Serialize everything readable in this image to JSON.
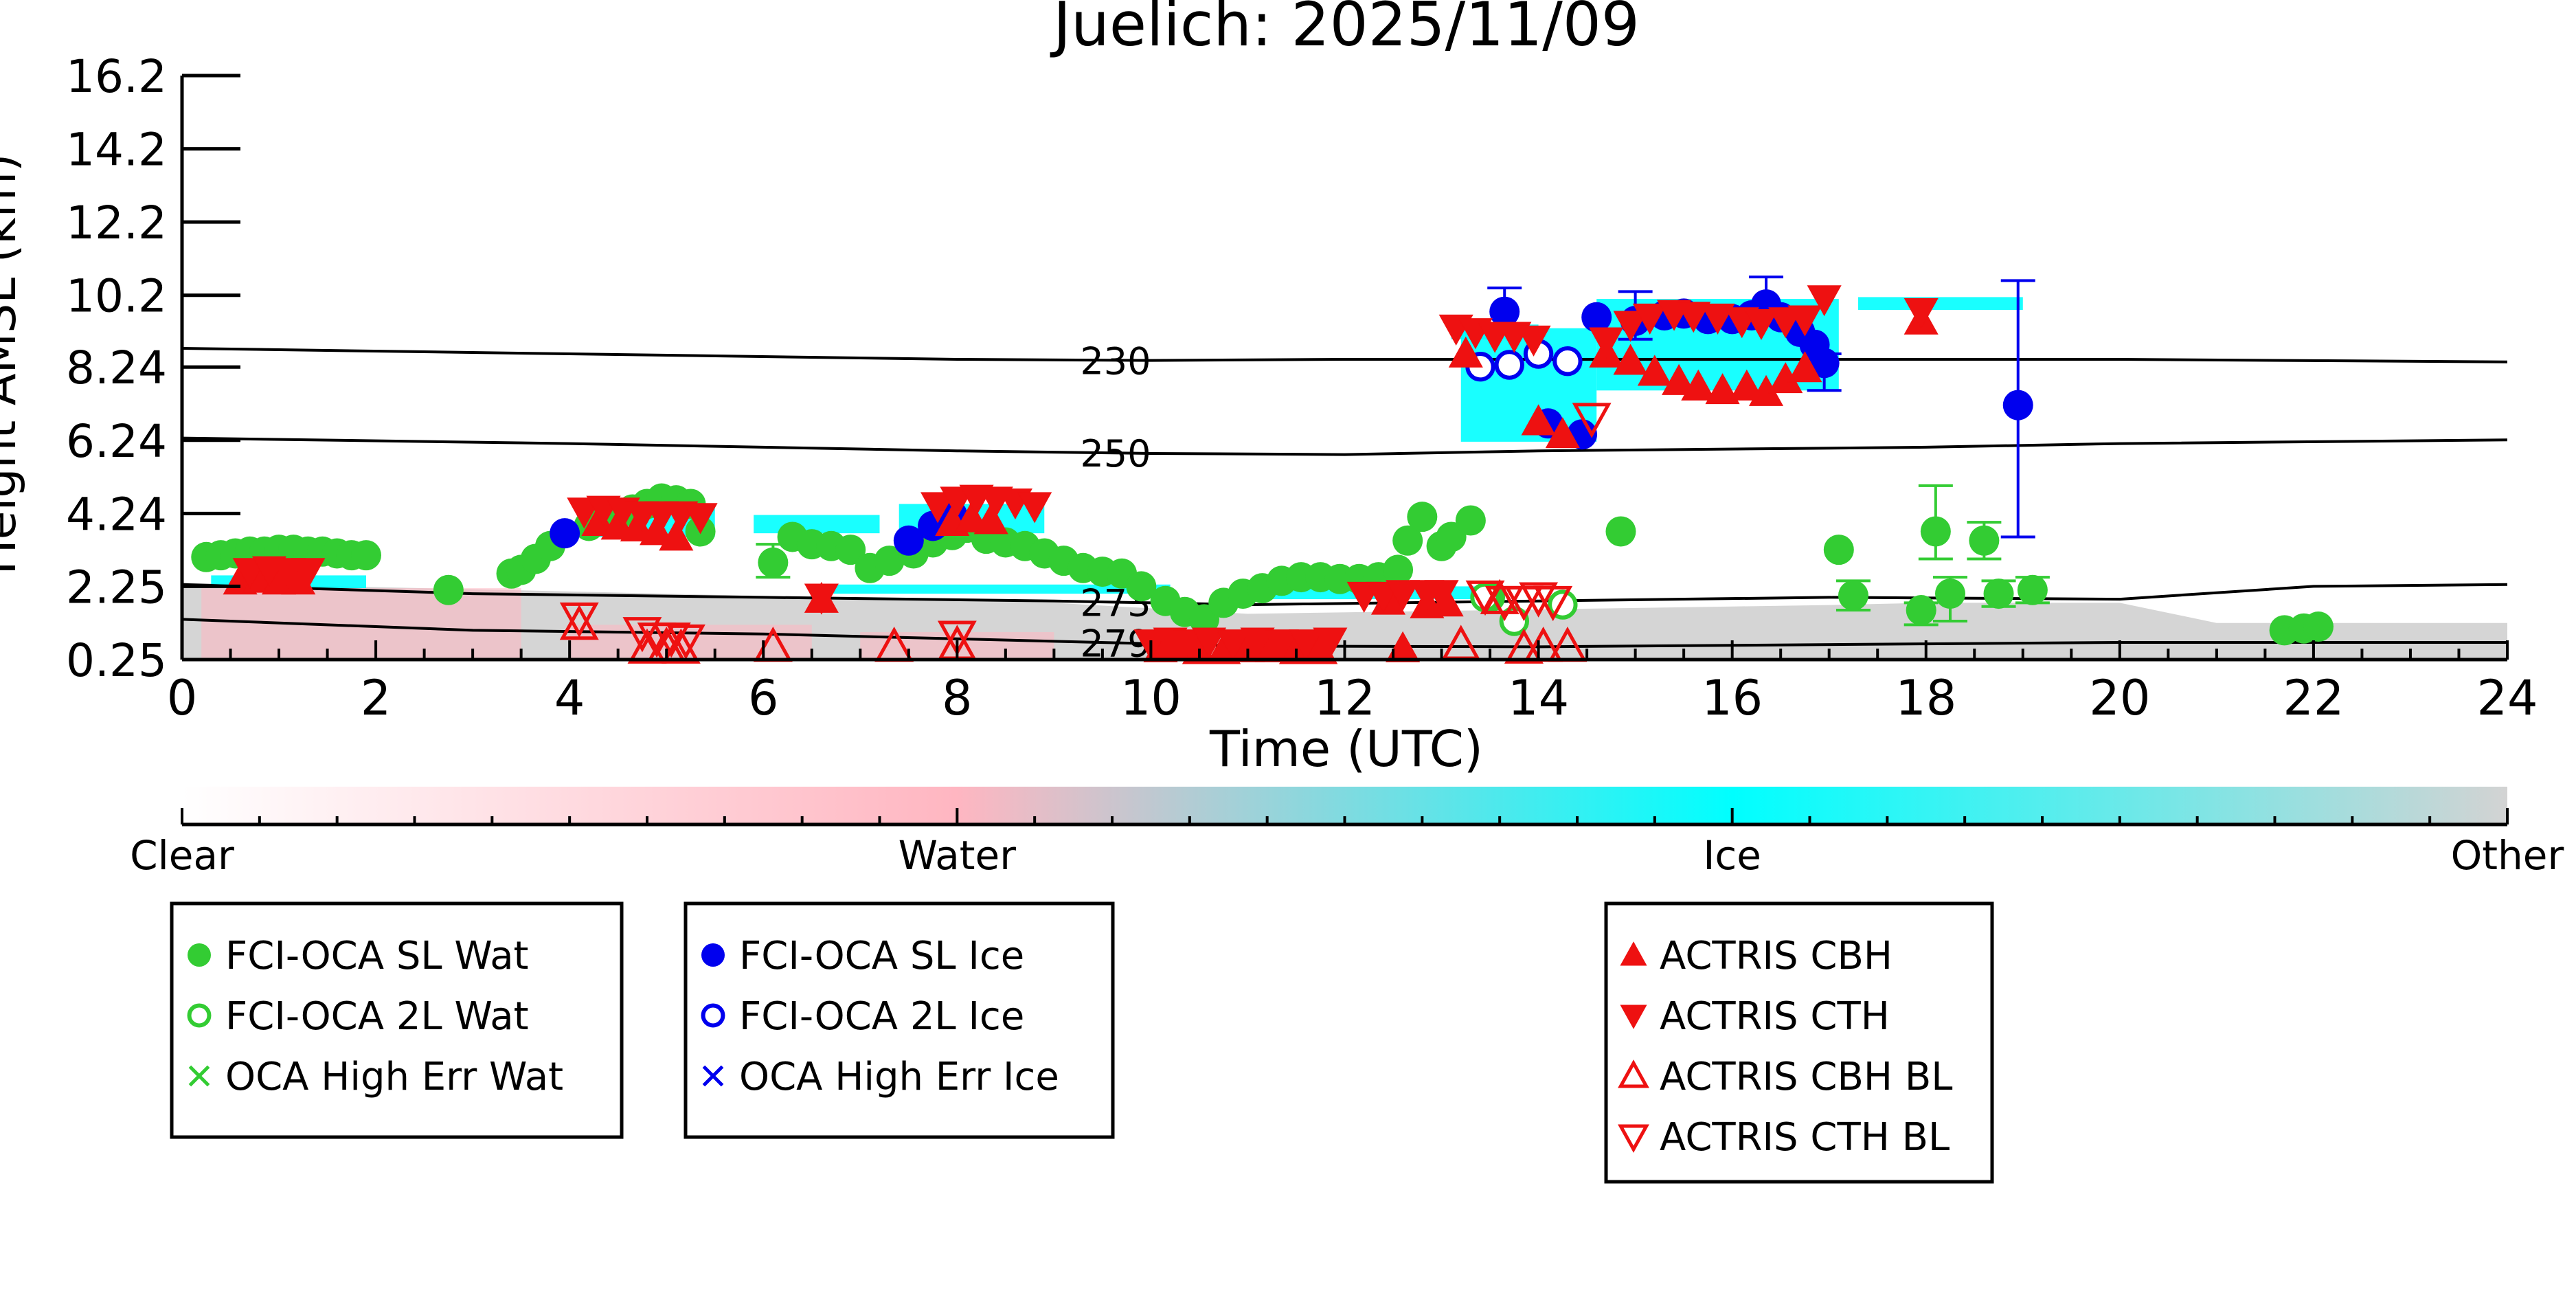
{
  "chart_data": {
    "type": "scatter",
    "title": "Juelich: 2025/11/09",
    "xlabel": "Time (UTC)",
    "ylabel": "Height AMSL (km)",
    "xlim": [
      0,
      24
    ],
    "ylim": [
      0.25,
      16.2
    ],
    "xticks": [
      "0",
      "2",
      "4",
      "6",
      "8",
      "10",
      "12",
      "14",
      "16",
      "18",
      "20",
      "22",
      "24"
    ],
    "yticks": [
      "0.25",
      "2.25",
      "4.24",
      "6.24",
      "8.24",
      "10.2",
      "12.2",
      "14.2",
      "16.2"
    ],
    "grid": false,
    "colorbar": {
      "labels": [
        "Clear",
        "Water",
        "Ice",
        "Other"
      ],
      "colors": [
        "#ffffff",
        "#ffb6c1",
        "#00ffff",
        "#d3d3d3"
      ]
    },
    "contours": [
      {
        "label": "230",
        "points": [
          [
            0,
            8.75
          ],
          [
            4,
            8.6
          ],
          [
            8,
            8.45
          ],
          [
            10,
            8.42
          ],
          [
            12,
            8.45
          ],
          [
            16,
            8.45
          ],
          [
            20,
            8.45
          ],
          [
            24,
            8.38
          ]
        ]
      },
      {
        "label": "250",
        "points": [
          [
            0,
            6.3
          ],
          [
            4,
            6.15
          ],
          [
            8,
            5.95
          ],
          [
            10,
            5.88
          ],
          [
            12,
            5.85
          ],
          [
            14,
            5.95
          ],
          [
            18,
            6.05
          ],
          [
            20,
            6.15
          ],
          [
            24,
            6.25
          ]
        ]
      },
      {
        "label": "273",
        "points": [
          [
            0,
            2.3
          ],
          [
            3,
            2.05
          ],
          [
            6,
            1.95
          ],
          [
            9,
            1.85
          ],
          [
            11,
            1.75
          ],
          [
            14,
            1.85
          ],
          [
            17,
            1.95
          ],
          [
            20,
            1.9
          ],
          [
            22,
            2.25
          ],
          [
            24,
            2.3
          ]
        ]
      },
      {
        "label": "279",
        "points": [
          [
            0,
            1.35
          ],
          [
            3,
            1.05
          ],
          [
            6,
            0.95
          ],
          [
            9,
            0.75
          ],
          [
            11,
            0.62
          ],
          [
            14,
            0.6
          ],
          [
            18,
            0.68
          ],
          [
            20,
            0.72
          ],
          [
            24,
            0.72
          ]
        ]
      }
    ],
    "series": [
      {
        "name": "FCI-OCA SL Wat",
        "color": "#33cc33",
        "marker": "circle-filled",
        "points": [
          [
            0.25,
            3.05
          ],
          [
            0.4,
            3.1
          ],
          [
            0.55,
            3.15
          ],
          [
            0.7,
            3.2
          ],
          [
            0.85,
            3.2
          ],
          [
            1.0,
            3.25
          ],
          [
            1.15,
            3.25
          ],
          [
            1.3,
            3.2
          ],
          [
            1.45,
            3.2
          ],
          [
            1.6,
            3.15
          ],
          [
            1.75,
            3.1
          ],
          [
            1.9,
            3.1
          ],
          [
            2.75,
            2.15
          ],
          [
            3.4,
            2.6
          ],
          [
            3.5,
            2.7
          ],
          [
            3.65,
            3.0
          ],
          [
            3.8,
            3.35
          ],
          [
            4.2,
            3.9
          ],
          [
            4.35,
            4.05
          ],
          [
            4.5,
            4.2
          ],
          [
            4.65,
            4.35
          ],
          [
            4.8,
            4.5
          ],
          [
            4.95,
            4.65
          ],
          [
            5.1,
            4.6
          ],
          [
            5.25,
            4.5
          ],
          [
            5.35,
            3.75
          ],
          [
            6.1,
            2.9
          ],
          [
            6.3,
            3.6
          ],
          [
            6.5,
            3.4
          ],
          [
            6.7,
            3.35
          ],
          [
            6.9,
            3.25
          ],
          [
            7.1,
            2.75
          ],
          [
            7.3,
            2.95
          ],
          [
            7.55,
            3.15
          ],
          [
            7.75,
            3.45
          ],
          [
            7.95,
            3.65
          ],
          [
            8.1,
            3.85
          ],
          [
            8.3,
            3.55
          ],
          [
            8.5,
            3.45
          ],
          [
            8.7,
            3.35
          ],
          [
            8.9,
            3.15
          ],
          [
            9.1,
            2.95
          ],
          [
            9.3,
            2.75
          ],
          [
            9.5,
            2.65
          ],
          [
            9.7,
            2.6
          ],
          [
            9.9,
            2.25
          ],
          [
            10.15,
            1.85
          ],
          [
            10.35,
            1.55
          ],
          [
            10.55,
            1.35
          ],
          [
            10.75,
            1.8
          ],
          [
            10.95,
            2.05
          ],
          [
            11.15,
            2.2
          ],
          [
            11.35,
            2.4
          ],
          [
            11.55,
            2.5
          ],
          [
            11.75,
            2.5
          ],
          [
            11.95,
            2.45
          ],
          [
            12.15,
            2.45
          ],
          [
            12.35,
            2.5
          ],
          [
            12.55,
            2.7
          ],
          [
            12.65,
            3.5
          ],
          [
            12.8,
            4.15
          ],
          [
            13.0,
            3.35
          ],
          [
            13.1,
            3.6
          ],
          [
            13.3,
            4.05
          ],
          [
            13.5,
            1.95
          ],
          [
            14.85,
            3.75
          ],
          [
            17.1,
            3.25
          ],
          [
            17.25,
            2.0
          ],
          [
            17.95,
            1.6
          ],
          [
            18.1,
            3.75
          ],
          [
            18.25,
            2.05
          ],
          [
            18.6,
            3.5
          ],
          [
            18.75,
            2.05
          ],
          [
            19.1,
            2.15
          ],
          [
            21.7,
            1.05
          ],
          [
            21.9,
            1.1
          ],
          [
            22.05,
            1.15
          ]
        ]
      },
      {
        "name": "FCI-OCA 2L Wat",
        "color": "#33cc33",
        "marker": "circle-open",
        "points": [
          [
            13.45,
            1.95
          ],
          [
            13.75,
            1.3
          ],
          [
            14.25,
            1.75
          ]
        ]
      },
      {
        "name": "OCA High Err Wat",
        "color": "#33cc33",
        "marker": "x",
        "points": []
      },
      {
        "name": "FCI-OCA SL Ice",
        "color": "#0000ee",
        "marker": "circle-filled",
        "points": [
          [
            3.95,
            3.7
          ],
          [
            7.5,
            3.5
          ],
          [
            7.75,
            3.9
          ],
          [
            7.95,
            4.2
          ],
          [
            13.65,
            9.75
          ],
          [
            14.1,
            6.7
          ],
          [
            14.45,
            6.4
          ],
          [
            14.6,
            9.6
          ],
          [
            15.0,
            9.5
          ],
          [
            15.3,
            9.65
          ],
          [
            15.5,
            9.7
          ],
          [
            15.75,
            9.55
          ],
          [
            16.0,
            9.55
          ],
          [
            16.2,
            9.65
          ],
          [
            16.35,
            9.95
          ],
          [
            16.5,
            9.6
          ],
          [
            16.7,
            9.2
          ],
          [
            16.85,
            8.85
          ],
          [
            16.95,
            8.35
          ],
          [
            18.95,
            7.2
          ]
        ]
      },
      {
        "name": "FCI-OCA 2L Ice",
        "color": "#0000ee",
        "marker": "circle-open",
        "points": [
          [
            13.4,
            8.25
          ],
          [
            13.7,
            8.3
          ],
          [
            14.0,
            8.6
          ],
          [
            14.3,
            8.4
          ]
        ]
      },
      {
        "name": "OCA High Err Ice",
        "color": "#0000ee",
        "marker": "x",
        "points": []
      },
      {
        "name": "ACTRIS CBH",
        "color": "#ee1111",
        "marker": "triangle-up-filled",
        "points": [
          [
            0.6,
            2.4
          ],
          [
            0.8,
            2.45
          ],
          [
            1.0,
            2.4
          ],
          [
            1.2,
            2.4
          ],
          [
            4.3,
            4.0
          ],
          [
            4.5,
            3.9
          ],
          [
            4.7,
            3.85
          ],
          [
            4.9,
            3.75
          ],
          [
            5.1,
            3.6
          ],
          [
            6.6,
            1.9
          ],
          [
            7.95,
            4.0
          ],
          [
            8.15,
            4.1
          ],
          [
            8.35,
            4.05
          ],
          [
            10.1,
            0.55
          ],
          [
            10.3,
            0.6
          ],
          [
            10.5,
            0.5
          ],
          [
            10.75,
            0.5
          ],
          [
            11.0,
            0.55
          ],
          [
            11.25,
            0.55
          ],
          [
            11.5,
            0.5
          ],
          [
            11.75,
            0.5
          ],
          [
            12.45,
            1.85
          ],
          [
            12.6,
            0.55
          ],
          [
            12.85,
            1.75
          ],
          [
            13.05,
            1.8
          ],
          [
            13.25,
            8.6
          ],
          [
            14.0,
            6.75
          ],
          [
            14.25,
            6.4
          ],
          [
            14.7,
            8.6
          ],
          [
            14.95,
            8.4
          ],
          [
            15.2,
            8.1
          ],
          [
            15.45,
            7.85
          ],
          [
            15.65,
            7.7
          ],
          [
            15.9,
            7.6
          ],
          [
            16.15,
            7.7
          ],
          [
            16.35,
            7.55
          ],
          [
            16.55,
            7.9
          ],
          [
            16.75,
            8.2
          ],
          [
            17.95,
            9.5
          ]
        ]
      },
      {
        "name": "ACTRIS CTH",
        "color": "#ee1111",
        "marker": "triangle-down-filled",
        "points": [
          [
            0.7,
            2.65
          ],
          [
            0.9,
            2.7
          ],
          [
            1.1,
            2.65
          ],
          [
            1.3,
            2.65
          ],
          [
            4.15,
            4.3
          ],
          [
            4.35,
            4.35
          ],
          [
            4.55,
            4.3
          ],
          [
            4.75,
            4.2
          ],
          [
            4.95,
            4.2
          ],
          [
            5.15,
            4.2
          ],
          [
            5.35,
            4.15
          ],
          [
            6.6,
            1.95
          ],
          [
            7.8,
            4.45
          ],
          [
            8.0,
            4.6
          ],
          [
            8.2,
            4.65
          ],
          [
            8.4,
            4.6
          ],
          [
            8.6,
            4.55
          ],
          [
            8.8,
            4.45
          ],
          [
            10.0,
            0.7
          ],
          [
            10.2,
            0.75
          ],
          [
            10.4,
            0.7
          ],
          [
            10.6,
            0.75
          ],
          [
            10.85,
            0.7
          ],
          [
            11.1,
            0.75
          ],
          [
            11.35,
            0.7
          ],
          [
            11.6,
            0.7
          ],
          [
            11.85,
            0.75
          ],
          [
            12.2,
            2.0
          ],
          [
            12.4,
            2.0
          ],
          [
            12.6,
            2.05
          ],
          [
            12.85,
            2.05
          ],
          [
            13.0,
            2.05
          ],
          [
            13.15,
            9.3
          ],
          [
            13.35,
            9.2
          ],
          [
            13.55,
            9.1
          ],
          [
            13.75,
            9.1
          ],
          [
            13.95,
            9.0
          ],
          [
            14.7,
            8.95
          ],
          [
            14.95,
            9.4
          ],
          [
            15.15,
            9.6
          ],
          [
            15.4,
            9.7
          ],
          [
            15.6,
            9.65
          ],
          [
            15.85,
            9.6
          ],
          [
            16.1,
            9.5
          ],
          [
            16.3,
            9.45
          ],
          [
            16.55,
            9.5
          ],
          [
            16.75,
            9.55
          ],
          [
            16.95,
            10.1
          ],
          [
            17.95,
            9.75
          ]
        ]
      },
      {
        "name": "ACTRIS CBH BL",
        "color": "#ee1111",
        "marker": "triangle-up-open",
        "points": [
          [
            4.1,
            1.2
          ],
          [
            4.8,
            0.55
          ],
          [
            5.0,
            0.6
          ],
          [
            5.15,
            0.55
          ],
          [
            6.1,
            0.6
          ],
          [
            7.35,
            0.6
          ],
          [
            8.0,
            0.65
          ],
          [
            13.2,
            0.65
          ],
          [
            13.6,
            1.9
          ],
          [
            13.85,
            0.55
          ],
          [
            14.05,
            0.6
          ],
          [
            14.3,
            0.6
          ]
        ]
      },
      {
        "name": "ACTRIS CTH BL",
        "color": "#ee1111",
        "marker": "triangle-down-open",
        "points": [
          [
            4.1,
            1.4
          ],
          [
            4.75,
            1.0
          ],
          [
            4.9,
            0.85
          ],
          [
            5.05,
            0.85
          ],
          [
            5.2,
            0.8
          ],
          [
            8.0,
            0.9
          ],
          [
            13.45,
            2.0
          ],
          [
            13.65,
            1.85
          ],
          [
            13.85,
            1.85
          ],
          [
            14.0,
            1.95
          ],
          [
            14.15,
            1.85
          ],
          [
            14.55,
            6.85
          ]
        ]
      }
    ],
    "error_bars": [
      {
        "color": "#33cc33",
        "x": 18.1,
        "lo": 3.0,
        "hi": 5.0
      },
      {
        "color": "#33cc33",
        "x": 18.6,
        "lo": 3.0,
        "hi": 4.0
      },
      {
        "color": "#33cc33",
        "x": 18.25,
        "lo": 1.3,
        "hi": 2.5
      },
      {
        "color": "#33cc33",
        "x": 17.25,
        "lo": 1.6,
        "hi": 2.4
      },
      {
        "color": "#33cc33",
        "x": 19.1,
        "lo": 1.8,
        "hi": 2.5
      },
      {
        "color": "#33cc33",
        "x": 18.75,
        "lo": 1.7,
        "hi": 2.4
      },
      {
        "color": "#33cc33",
        "x": 17.95,
        "lo": 1.2,
        "hi": 1.8
      },
      {
        "color": "#0000ee",
        "x": 18.95,
        "lo": 3.6,
        "hi": 10.6
      },
      {
        "color": "#0000ee",
        "x": 13.65,
        "lo": 9.2,
        "hi": 10.4
      },
      {
        "color": "#0000ee",
        "x": 16.35,
        "lo": 9.5,
        "hi": 10.7
      },
      {
        "color": "#0000ee",
        "x": 16.95,
        "lo": 7.6,
        "hi": 8.6
      },
      {
        "color": "#0000ee",
        "x": 15.0,
        "lo": 9.0,
        "hi": 10.3
      },
      {
        "color": "#33cc33",
        "x": 6.1,
        "lo": 2.5,
        "hi": 3.4
      }
    ],
    "legend": {
      "placement": "below",
      "boxes": [
        [
          "FCI-OCA SL Wat",
          "FCI-OCA 2L Wat",
          "OCA High Err Wat"
        ],
        [
          "FCI-OCA SL Ice",
          "FCI-OCA 2L Ice",
          "OCA High Err Ice"
        ],
        [
          "ACTRIS CBH",
          "ACTRIS CTH",
          "ACTRIS CBH BL",
          "ACTRIS CTH BL"
        ]
      ]
    }
  }
}
